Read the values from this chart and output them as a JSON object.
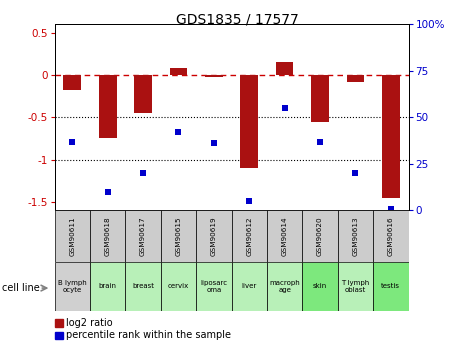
{
  "title": "GDS1835 / 17577",
  "gsm_labels": [
    "GSM90611",
    "GSM90618",
    "GSM90617",
    "GSM90615",
    "GSM90619",
    "GSM90612",
    "GSM90614",
    "GSM90620",
    "GSM90613",
    "GSM90616"
  ],
  "cell_labels": [
    "B lymph\nocyte",
    "brain",
    "breast",
    "cervix",
    "liposarc\noma",
    "liver",
    "macroph\nage",
    "skin",
    "T lymph\noblast",
    "testis"
  ],
  "log2_ratio": [
    -0.18,
    -0.75,
    -0.45,
    0.08,
    -0.02,
    -1.1,
    0.15,
    -0.55,
    -0.08,
    -1.45
  ],
  "pct_rank": [
    37,
    10,
    20,
    42,
    36,
    5,
    55,
    37,
    20,
    1
  ],
  "ylim_left": [
    -1.6,
    0.6
  ],
  "ylim_right": [
    0,
    100
  ],
  "bar_color": "#aa1111",
  "dot_color": "#0000cc",
  "cell_colors_gsm": "#cccccc",
  "cell_colors_tissue": [
    "#d0d0d0",
    "#b8f0b8",
    "#b8f0b8",
    "#b8f0b8",
    "#b8f0b8",
    "#b8f0b8",
    "#b8f0b8",
    "#7de87d",
    "#b8f0b8",
    "#7de87d"
  ]
}
